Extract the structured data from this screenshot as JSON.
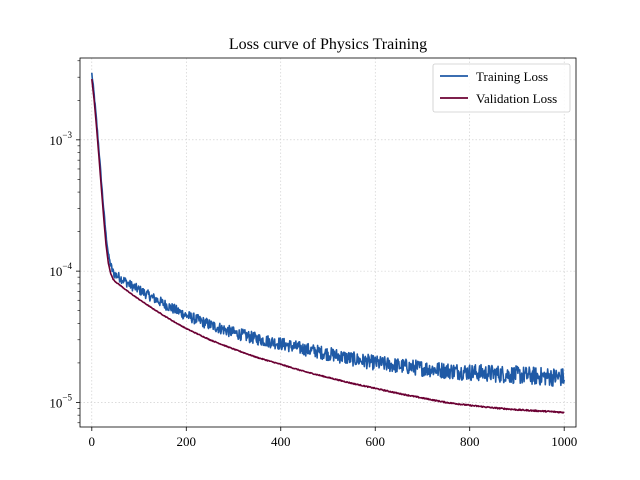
{
  "chart_data": {
    "type": "line",
    "title": "Loss curve of Physics Training",
    "xlabel": "",
    "ylabel": "",
    "yscale": "log",
    "xlim": [
      -25,
      1025
    ],
    "ylim": [
      6.5e-06,
      0.0042
    ],
    "x_ticks": [
      0,
      200,
      400,
      600,
      800,
      1000
    ],
    "y_ticks": [
      {
        "value": 1e-05,
        "base": "10",
        "exp": "−5"
      },
      {
        "value": 0.0001,
        "base": "10",
        "exp": "−4"
      },
      {
        "value": 0.001,
        "base": "10",
        "exp": "−3"
      }
    ],
    "grid": true,
    "legend_position": "top-right",
    "series": [
      {
        "name": "Training Loss",
        "color": "#1f5aa6",
        "x": [
          0,
          5,
          10,
          15,
          20,
          25,
          30,
          35,
          40,
          45,
          50,
          60,
          70,
          80,
          100,
          125,
          150,
          175,
          200,
          250,
          300,
          350,
          400,
          450,
          500,
          550,
          600,
          650,
          700,
          750,
          800,
          850,
          900,
          950,
          1000
        ],
        "y": [
          0.0032,
          0.0022,
          0.0014,
          0.00085,
          0.0005,
          0.0003,
          0.00019,
          0.000135,
          0.00011,
          9.8e-05,
          9.4e-05,
          8.9e-05,
          8.4e-05,
          7.9e-05,
          7.2e-05,
          6.4e-05,
          5.7e-05,
          5.1e-05,
          4.6e-05,
          3.9e-05,
          3.4e-05,
          3.05e-05,
          2.8e-05,
          2.55e-05,
          2.35e-05,
          2.15e-05,
          2e-05,
          1.9e-05,
          1.82e-05,
          1.75e-05,
          1.7e-05,
          1.66e-05,
          1.62e-05,
          1.58e-05,
          1.55e-05
        ],
        "noise": 0.055
      },
      {
        "name": "Validation Loss",
        "color": "#6b0033",
        "x": [
          0,
          5,
          10,
          15,
          20,
          25,
          30,
          35,
          40,
          45,
          50,
          60,
          70,
          80,
          100,
          125,
          150,
          175,
          200,
          250,
          300,
          350,
          400,
          450,
          500,
          550,
          600,
          650,
          700,
          750,
          800,
          850,
          900,
          950,
          1000
        ],
        "y": [
          0.0029,
          0.002,
          0.00125,
          0.00075,
          0.00044,
          0.00026,
          0.00016,
          0.000115,
          9.6e-05,
          8.7e-05,
          8.3e-05,
          7.8e-05,
          7.3e-05,
          6.85e-05,
          6.1e-05,
          5.3e-05,
          4.65e-05,
          4.1e-05,
          3.65e-05,
          3e-05,
          2.55e-05,
          2.2e-05,
          1.95e-05,
          1.72e-05,
          1.55e-05,
          1.4e-05,
          1.28e-05,
          1.17e-05,
          1.08e-05,
          1e-05,
          9.5e-06,
          9.1e-06,
          8.8e-06,
          8.6e-06,
          8.4e-06
        ],
        "noise": 0.004
      }
    ]
  }
}
